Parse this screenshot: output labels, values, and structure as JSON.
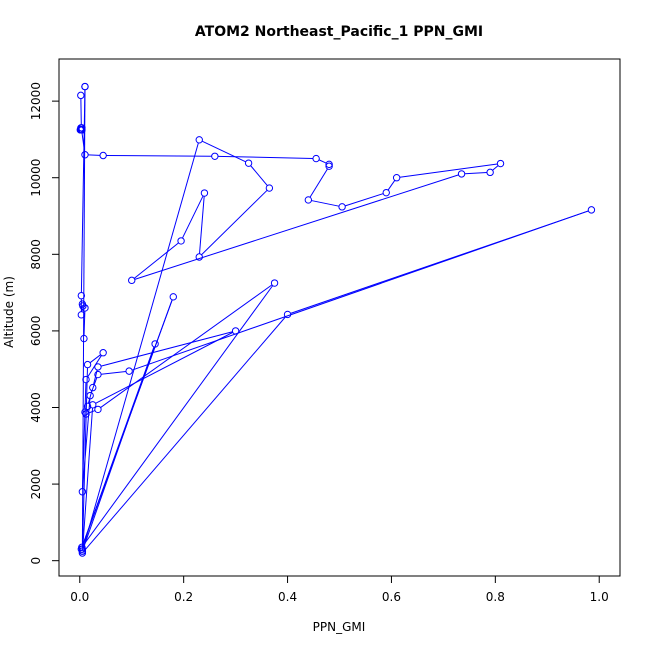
{
  "chart_data": {
    "type": "line",
    "title": "ATOM2 Northeast_Pacific_1 PPN_GMI",
    "xlabel": "PPN_GMI",
    "ylabel": "Altitude (m)",
    "xlim": [
      -0.04,
      1.04
    ],
    "ylim": [
      -400,
      13100
    ],
    "xticks": [
      0.0,
      0.2,
      0.4,
      0.6,
      0.8,
      1.0
    ],
    "xtick_labels": [
      "0.0",
      "0.2",
      "0.4",
      "0.6",
      "0.8",
      "1.0"
    ],
    "yticks": [
      0,
      2000,
      4000,
      6000,
      8000,
      10000,
      12000
    ],
    "ytick_labels": [
      "0",
      "2000",
      "4000",
      "6000",
      "8000",
      "10000",
      "12000"
    ],
    "grid": false,
    "legend": "none",
    "series": [
      {
        "color": "#0000ff",
        "marker": "open-circle",
        "x": [
          0.002,
          0.003,
          0.004,
          0.004,
          0.003,
          0.002,
          0.003,
          0.001,
          0.002,
          0.002,
          0.003,
          0.004,
          0.004,
          0.003,
          0.01,
          0.045,
          0.26,
          0.455,
          0.48,
          0.48,
          0.44,
          0.505,
          0.59,
          0.61,
          0.81,
          0.79,
          0.735,
          0.1,
          0.195,
          0.24,
          0.23,
          0.365,
          0.325,
          0.23,
          0.005,
          0.015,
          0.045,
          0.012,
          0.005,
          0.02,
          0.035,
          0.095,
          0.985,
          0.4,
          0.005,
          0.025,
          0.3,
          0.035,
          0.025,
          0.015,
          0.01,
          0.012,
          0.035,
          0.375,
          0.004,
          0.18,
          0.003,
          0.145,
          0.005,
          0.005,
          0.01,
          0.01,
          0.003,
          0.003,
          0.005,
          0.006,
          0.01,
          0.008
        ],
        "y": [
          12150,
          11300,
          11300,
          11250,
          11250,
          11250,
          11250,
          11250,
          11300,
          11250,
          11250,
          11300,
          11250,
          11300,
          10600,
          10580,
          10560,
          10500,
          10350,
          10300,
          9420,
          9240,
          9610,
          10000,
          10370,
          10140,
          10100,
          7320,
          8350,
          9600,
          7930,
          9730,
          10380,
          10990,
          250,
          5120,
          5430,
          4730,
          1800,
          4310,
          4860,
          4950,
          9160,
          6430,
          200,
          4070,
          6000,
          5060,
          4520,
          4030,
          3880,
          3830,
          3950,
          7250,
          350,
          6890,
          300,
          5660,
          250,
          300,
          12380,
          12380,
          6920,
          6420,
          6700,
          6650,
          6600,
          5800
        ]
      }
    ]
  }
}
